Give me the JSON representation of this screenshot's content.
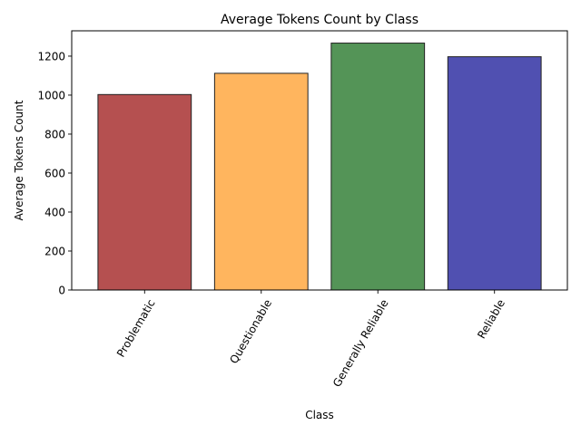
{
  "chart_data": {
    "type": "bar",
    "title": "Average Tokens Count by Class",
    "xlabel": "Class",
    "ylabel": "Average Tokens Count",
    "categories": [
      "Problematic",
      "Questionable",
      "Generally Reliable",
      "Reliable"
    ],
    "values": [
      1003,
      1112,
      1267,
      1197
    ],
    "colors": [
      "#a52a2a",
      "#ffa53b",
      "#2e7d32",
      "#2a2aa0"
    ],
    "ylim": [
      0,
      1330
    ],
    "yticks": [
      0,
      200,
      400,
      600,
      800,
      1000,
      1200
    ],
    "grid": false,
    "legend": "none"
  }
}
